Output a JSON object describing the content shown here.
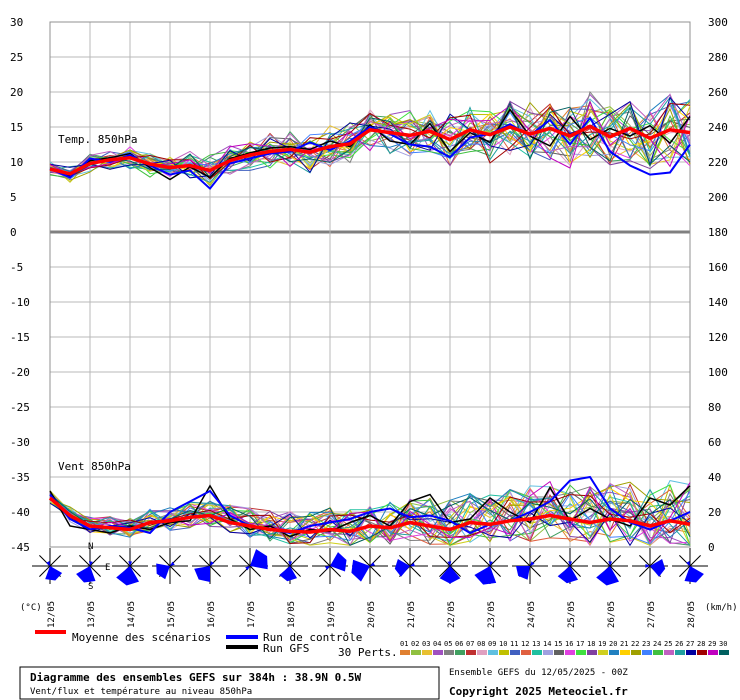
{
  "chart_data": {
    "type": "line",
    "title": "Diagramme des ensembles GEFS sur 384h : 38.9N 0.5W",
    "subtitle": "Vent/flux et température au niveau 850hPa",
    "run_info": "Ensemble GEFS du 12/05/2025 - 00Z",
    "copyright": "Copyright 2025 Meteociel.fr",
    "y_left_unit": "(°C)",
    "y_right_unit": "(km/h)",
    "y_left_ticks": [
      "30",
      "25",
      "20",
      "15",
      "10",
      "5",
      "0",
      "-5",
      "-10",
      "-15",
      "-20",
      "-25",
      "-30",
      "-35",
      "-40",
      "-45"
    ],
    "y_right_ticks": [
      "300",
      "280",
      "260",
      "240",
      "220",
      "200",
      "180",
      "160",
      "140",
      "120",
      "100",
      "80",
      "60",
      "40",
      "20",
      "0"
    ],
    "ylim_left": [
      -45,
      30
    ],
    "ylim_right": [
      0,
      300
    ],
    "x_ticks": [
      "12/05",
      "13/05",
      "14/05",
      "15/05",
      "16/05",
      "17/05",
      "18/05",
      "19/05",
      "20/05",
      "21/05",
      "22/05",
      "23/05",
      "24/05",
      "25/05",
      "26/05",
      "27/05",
      "28/05"
    ],
    "panel_labels": {
      "temp": "Temp. 850hPa",
      "wind": "Vent 850hPa"
    },
    "compass": {
      "n": "N",
      "e": "E",
      "s": "S"
    },
    "legend": {
      "mean": "Moyenne des scénarios",
      "control": "Run de contrôle",
      "gfs": "Run GFS",
      "perts": "30 Perts.",
      "pert_numbers": [
        "01",
        "02",
        "03",
        "04",
        "05",
        "06",
        "07",
        "08",
        "09",
        "10",
        "11",
        "12",
        "13",
        "14",
        "15",
        "16",
        "17",
        "18",
        "19",
        "20",
        "21",
        "22",
        "23",
        "24",
        "25",
        "26",
        "27",
        "28",
        "29",
        "30"
      ]
    },
    "colors": {
      "mean": "#ff0000",
      "control": "#0000ff",
      "gfs": "#000000",
      "grid": "#b8b8b8",
      "rose": "#0000ff",
      "perts": [
        "#e08030",
        "#90c040",
        "#e8c030",
        "#a050c0",
        "#808080",
        "#40a060",
        "#c03030",
        "#e0a0c0",
        "#60c0e0",
        "#c0c000",
        "#4060c0",
        "#e06040",
        "#20c0a0",
        "#a0a0e0",
        "#606060",
        "#e040e0",
        "#40e040",
        "#8040a0",
        "#d0d020",
        "#2080c0",
        "#ffd000",
        "#a0a000",
        "#4080ff",
        "#40c040",
        "#c060c0",
        "#20a0a0",
        "#0000a0",
        "#a00000",
        "#c000c0",
        "#006060"
      ]
    },
    "series_temp": {
      "x": [
        0,
        0.5,
        1,
        1.5,
        2,
        2.5,
        3,
        3.5,
        4,
        4.5,
        5,
        5.5,
        6,
        6.5,
        7,
        7.5,
        8,
        8.5,
        9,
        9.5,
        10,
        10.5,
        11,
        11.5,
        12,
        12.5,
        13,
        13.5,
        14,
        14.5,
        15,
        15.5,
        16
      ],
      "mean": [
        9,
        8.3,
        9.8,
        10.3,
        10.6,
        9.7,
        9.2,
        9.5,
        8.8,
        10.2,
        11,
        11.5,
        11.8,
        11.4,
        12.2,
        12.6,
        14.6,
        14.2,
        13.8,
        14.4,
        13.2,
        14.6,
        13.9,
        15,
        14,
        14.8,
        13.7,
        15.1,
        13.6,
        14.8,
        13.4,
        14.6,
        14.2
      ],
      "control": [
        9,
        7.8,
        10.5,
        10,
        11,
        9.5,
        8.2,
        8.8,
        6.2,
        9.8,
        10.5,
        11.2,
        11.5,
        12.8,
        11.7,
        13,
        15,
        14,
        12.5,
        12.2,
        10.7,
        13.5,
        14,
        15.4,
        13.8,
        16,
        12.5,
        16.3,
        11.5,
        9.5,
        8.2,
        8.5,
        12.5
      ],
      "gfs": [
        9,
        8,
        10.2,
        10.6,
        11.2,
        9.2,
        7.5,
        9.3,
        7.8,
        10.5,
        11.3,
        12,
        12.2,
        11.8,
        13,
        12.2,
        15.3,
        13,
        12.5,
        15.5,
        11.5,
        14.2,
        12.8,
        17.5,
        13.7,
        12.3,
        16.5,
        13.2,
        14.8,
        13.7,
        15.2,
        12.7,
        16.5
      ]
    },
    "series_wind": {
      "x": [
        0,
        0.5,
        1,
        1.5,
        2,
        2.5,
        3,
        3.5,
        4,
        4.5,
        5,
        5.5,
        6,
        6.5,
        7,
        7.5,
        8,
        8.5,
        9,
        9.5,
        10,
        10.5,
        11,
        11.5,
        12,
        12.5,
        13,
        13.5,
        14,
        14.5,
        15,
        15.5,
        16
      ],
      "mean": [
        28,
        18,
        12,
        11,
        10,
        14,
        15,
        17,
        18,
        14,
        12,
        10,
        9,
        8.5,
        10,
        9,
        12,
        11,
        14,
        12,
        10,
        14,
        13,
        15,
        16,
        18,
        16,
        14,
        16,
        15,
        12,
        15,
        13
      ],
      "control": [
        30,
        16,
        10,
        12,
        11,
        8,
        20,
        26,
        32,
        18,
        12,
        10,
        8,
        12,
        14,
        16,
        20,
        22,
        17,
        18,
        15,
        8,
        13,
        15,
        20,
        26,
        38,
        40,
        22,
        14,
        10,
        15,
        20
      ],
      "gfs": [
        32,
        12,
        10,
        8,
        12,
        10,
        14,
        15,
        35,
        16,
        10,
        12,
        6,
        10,
        9,
        14,
        18,
        12,
        26,
        30,
        14,
        16,
        28,
        20,
        14,
        34,
        15,
        22,
        16,
        12,
        28,
        24,
        35
      ]
    },
    "wind_dirs": [
      160,
      200,
      190,
      240,
      220,
      60,
      190,
      70,
      250,
      260,
      180,
      200,
      230,
      190,
      190,
      100,
      160,
      180,
      260,
      250,
      150,
      180,
      100,
      170,
      170,
      160,
      200,
      180,
      240,
      260,
      190,
      240,
      250,
      250,
      230
    ]
  }
}
